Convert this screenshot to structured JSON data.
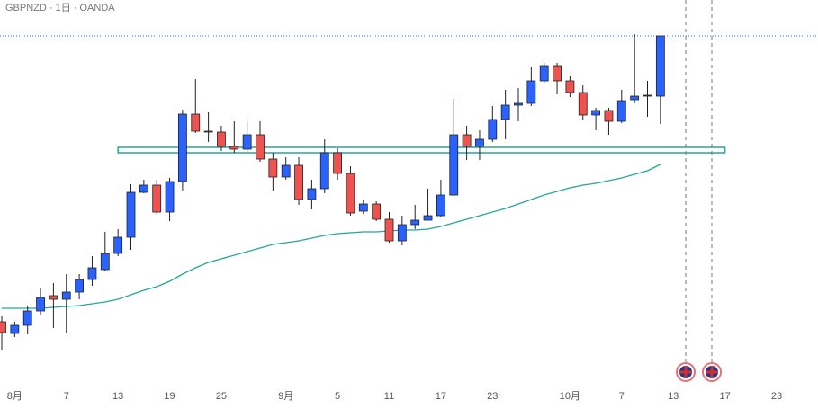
{
  "chart_data": {
    "type": "candlestick",
    "title": "GBPNZD · 1日 · OANDA",
    "categories": [
      null,
      "8月",
      null,
      null,
      null,
      "7",
      null,
      null,
      null,
      "13",
      null,
      null,
      null,
      "19",
      null,
      null,
      null,
      "25",
      null,
      null,
      null,
      null,
      "9月",
      null,
      null,
      null,
      "5",
      null,
      null,
      null,
      "11",
      null,
      null,
      null,
      "17",
      null,
      null,
      null,
      "23",
      null,
      null,
      null,
      null,
      null,
      "10月",
      null,
      null,
      null,
      "7",
      null,
      null,
      null,
      "13",
      null,
      null,
      null,
      "17",
      null,
      null,
      null,
      "23",
      null,
      null
    ],
    "ylim": [
      2.142,
      2.228
    ],
    "up_color": "#2962ff",
    "down_color": "#ef5350",
    "open": [
      2.1564,
      2.1538,
      2.1556,
      2.1588,
      2.1622,
      2.1614,
      2.163,
      2.1658,
      2.168,
      2.1716,
      2.1752,
      2.1852,
      2.1868,
      2.1808,
      2.1876,
      2.2026,
      2.1988,
      2.1986,
      2.1954,
      2.1948,
      2.198,
      2.1926,
      2.1886,
      2.1912,
      2.1836,
      2.186,
      2.194,
      2.1894,
      2.181,
      2.1826,
      2.1792,
      2.1744,
      2.178,
      2.179,
      2.18,
      2.1846,
      2.198,
      2.1954,
      2.197,
      2.2014,
      2.2046,
      2.205,
      2.21,
      2.2134,
      2.21,
      2.2074,
      2.2024,
      2.2034,
      2.201,
      2.2058,
      2.2066,
      2.2066,
      null,
      null,
      null,
      null,
      null,
      null,
      null,
      null,
      null,
      null,
      null
    ],
    "high": [
      2.1576,
      2.1564,
      2.16,
      2.164,
      2.165,
      2.167,
      2.167,
      2.171,
      2.1764,
      2.177,
      2.187,
      2.188,
      2.188,
      2.1884,
      2.2036,
      2.2104,
      2.203,
      2.2,
      2.201,
      2.201,
      2.201,
      2.194,
      2.193,
      2.193,
      2.188,
      2.197,
      2.195,
      2.191,
      2.1834,
      2.1832,
      2.1808,
      2.18,
      2.1824,
      2.186,
      2.188,
      2.206,
      2.2,
      2.199,
      2.2044,
      2.208,
      2.2084,
      2.213,
      2.214,
      2.214,
      2.211,
      2.209,
      2.204,
      2.204,
      2.208,
      2.2204,
      2.21,
      2.22,
      null,
      null,
      null,
      null,
      null,
      null,
      null,
      null,
      null,
      null,
      null
    ],
    "low": [
      2.15,
      2.153,
      2.1536,
      2.158,
      2.155,
      2.154,
      2.1614,
      2.1644,
      2.1676,
      2.171,
      2.1724,
      2.185,
      2.1804,
      2.1788,
      2.1856,
      2.1984,
      2.1964,
      2.1944,
      2.194,
      2.194,
      2.192,
      2.1854,
      2.188,
      2.1824,
      2.1814,
      2.185,
      2.188,
      2.18,
      2.1804,
      2.1788,
      2.174,
      2.1734,
      2.177,
      2.179,
      2.1796,
      2.1844,
      2.1924,
      2.1924,
      2.1964,
      2.197,
      2.201,
      2.2044,
      2.2096,
      2.207,
      2.2064,
      2.2014,
      2.199,
      2.198,
      2.2006,
      2.205,
      2.202,
      2.2004,
      null,
      null,
      null,
      null,
      null,
      null,
      null,
      null,
      null,
      null,
      null
    ],
    "close": [
      2.154,
      2.1556,
      2.1588,
      2.1618,
      2.1614,
      2.163,
      2.1658,
      2.1684,
      2.1716,
      2.1752,
      2.1852,
      2.1868,
      2.1808,
      2.1876,
      2.2026,
      2.1988,
      2.1986,
      2.1954,
      2.1948,
      2.198,
      2.1926,
      2.1886,
      2.1912,
      2.1836,
      2.186,
      2.194,
      2.1894,
      2.1806,
      2.1826,
      2.1792,
      2.1744,
      2.178,
      2.179,
      2.18,
      2.1846,
      2.198,
      2.1954,
      2.197,
      2.2014,
      2.2046,
      2.205,
      2.21,
      2.2134,
      2.21,
      2.2074,
      2.2024,
      2.2034,
      2.201,
      2.2056,
      2.2066,
      2.2068,
      2.22,
      null,
      null,
      null,
      null,
      null,
      null,
      null,
      null,
      null,
      null,
      null
    ],
    "moving_average": {
      "color": "#26a69a",
      "values": [
        2.1594,
        2.1594,
        2.1594,
        2.1594,
        2.1596,
        2.1598,
        2.16,
        2.1604,
        2.1608,
        2.1614,
        2.1624,
        2.1634,
        2.1642,
        2.1654,
        2.167,
        2.1684,
        2.1696,
        2.1704,
        2.1712,
        2.172,
        2.1728,
        2.1736,
        2.174,
        2.1744,
        2.175,
        2.1756,
        2.176,
        2.1762,
        2.1764,
        2.1764,
        2.1766,
        2.1768,
        2.1768,
        2.177,
        2.1776,
        2.1784,
        2.1792,
        2.18,
        2.1808,
        2.1816,
        2.1826,
        2.1836,
        2.1846,
        2.1854,
        2.1862,
        2.1868,
        2.1872,
        2.1878,
        2.1884,
        2.1892,
        2.19,
        2.1914,
        null,
        null,
        null,
        null,
        null,
        null,
        null,
        null,
        null,
        null,
        null
      ]
    },
    "zone": {
      "low": 2.194,
      "high": 2.1952,
      "from": 9,
      "to": 56,
      "color": "#26a69a"
    }
  }
}
